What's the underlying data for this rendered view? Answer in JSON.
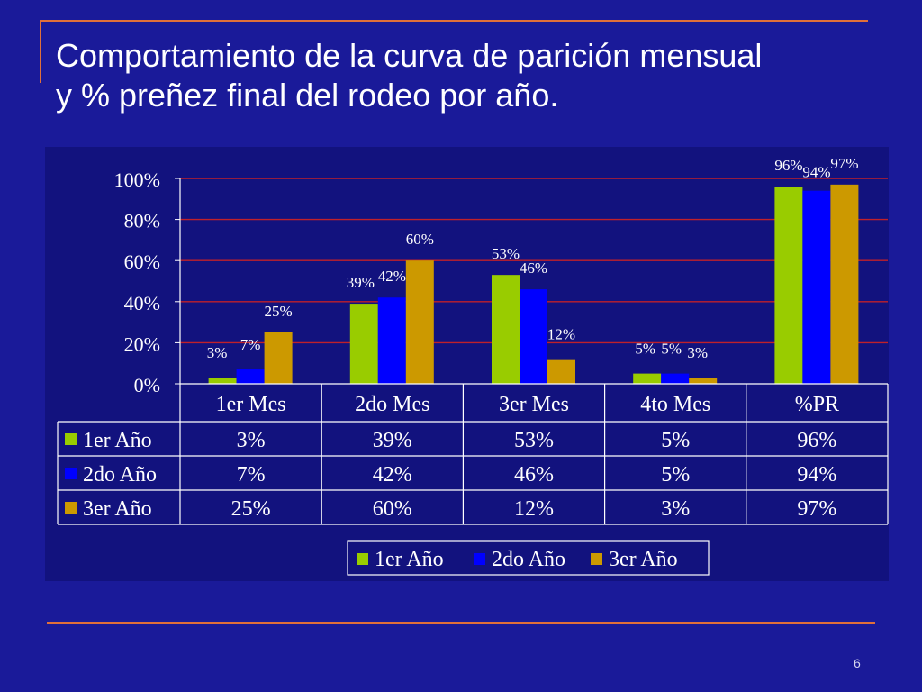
{
  "slide": {
    "title_line1": "Comportamiento de la curva de parición mensual",
    "title_line2": "y % preñez final del rodeo por año.",
    "page_number": "6"
  },
  "colors": {
    "background": "#1a1a99",
    "accent_rule": "#e0703a",
    "gridline": "#c0202a"
  },
  "chart_data": {
    "type": "bar",
    "categories": [
      "1er Mes",
      "2do Mes",
      "3er Mes",
      "4to Mes",
      "%PR"
    ],
    "series": [
      {
        "name": "1er Año",
        "color": "#99cc00",
        "values": [
          3,
          39,
          53,
          5,
          96
        ],
        "labels": [
          "3%",
          "39%",
          "53%",
          "5%",
          "96%"
        ]
      },
      {
        "name": "2do Año",
        "color": "#0000ff",
        "values": [
          7,
          42,
          46,
          5,
          94
        ],
        "labels": [
          "7%",
          "42%",
          "46%",
          "5%",
          "94%"
        ]
      },
      {
        "name": "3er Año",
        "color": "#cc9900",
        "values": [
          25,
          60,
          12,
          3,
          97
        ],
        "labels": [
          "25%",
          "60%",
          "12%",
          "3%",
          "97%"
        ]
      }
    ],
    "ylim": [
      0,
      100
    ],
    "yticks": [
      "0%",
      "20%",
      "40%",
      "60%",
      "80%",
      "100%"
    ],
    "grid": true,
    "legend": "bottom",
    "data_table": true
  }
}
